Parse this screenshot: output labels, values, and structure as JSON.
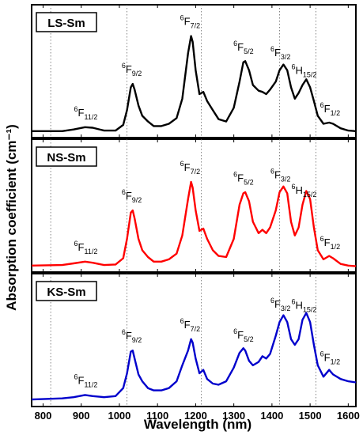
{
  "chart_data": {
    "type": "line",
    "ylabel": "Absorption coefficient (cm⁻¹)",
    "xlabel": "Wavelength (nm)",
    "xlim": [
      770,
      1620
    ],
    "x_ticks": [
      800,
      900,
      1000,
      1100,
      1200,
      1300,
      1400,
      1500,
      1600
    ],
    "x_grid_lines": [
      820,
      1020,
      1215,
      1420,
      1515
    ],
    "y_axis_ticks_shown": false,
    "panels": [
      {
        "label": "LS-Sm",
        "color": "#000000",
        "points": [
          [
            770,
            0.015
          ],
          [
            850,
            0.015
          ],
          [
            880,
            0.03
          ],
          [
            910,
            0.05
          ],
          [
            930,
            0.045
          ],
          [
            960,
            0.02
          ],
          [
            990,
            0.02
          ],
          [
            1010,
            0.07
          ],
          [
            1020,
            0.2
          ],
          [
            1030,
            0.4
          ],
          [
            1035,
            0.43
          ],
          [
            1040,
            0.38
          ],
          [
            1050,
            0.24
          ],
          [
            1060,
            0.15
          ],
          [
            1075,
            0.1
          ],
          [
            1090,
            0.06
          ],
          [
            1110,
            0.06
          ],
          [
            1130,
            0.08
          ],
          [
            1150,
            0.13
          ],
          [
            1165,
            0.3
          ],
          [
            1180,
            0.7
          ],
          [
            1188,
            0.85
          ],
          [
            1192,
            0.8
          ],
          [
            1200,
            0.55
          ],
          [
            1210,
            0.34
          ],
          [
            1220,
            0.36
          ],
          [
            1230,
            0.28
          ],
          [
            1245,
            0.2
          ],
          [
            1260,
            0.12
          ],
          [
            1280,
            0.1
          ],
          [
            1300,
            0.22
          ],
          [
            1315,
            0.45
          ],
          [
            1325,
            0.62
          ],
          [
            1330,
            0.63
          ],
          [
            1340,
            0.55
          ],
          [
            1350,
            0.42
          ],
          [
            1365,
            0.37
          ],
          [
            1375,
            0.36
          ],
          [
            1385,
            0.34
          ],
          [
            1395,
            0.38
          ],
          [
            1410,
            0.45
          ],
          [
            1420,
            0.55
          ],
          [
            1430,
            0.6
          ],
          [
            1440,
            0.55
          ],
          [
            1450,
            0.4
          ],
          [
            1460,
            0.3
          ],
          [
            1470,
            0.35
          ],
          [
            1480,
            0.42
          ],
          [
            1490,
            0.47
          ],
          [
            1500,
            0.4
          ],
          [
            1510,
            0.28
          ],
          [
            1520,
            0.15
          ],
          [
            1535,
            0.08
          ],
          [
            1550,
            0.09
          ],
          [
            1560,
            0.08
          ],
          [
            1580,
            0.04
          ],
          [
            1600,
            0.02
          ],
          [
            1620,
            0.015
          ]
        ],
        "annotations": [
          {
            "base": "6",
            "main": "F",
            "sub": "11/2",
            "x": 910
          },
          {
            "base": "6",
            "main": "F",
            "sub": "9/2",
            "x": 1035
          },
          {
            "base": "6",
            "main": "F",
            "sub": "7/2",
            "x": 1188
          },
          {
            "base": "6",
            "main": "F",
            "sub": "5/2",
            "x": 1328
          },
          {
            "base": "6",
            "main": "F",
            "sub": "3/2",
            "x": 1425
          },
          {
            "base": "6",
            "main": "H",
            "sub": "15/2",
            "x": 1480
          },
          {
            "base": "6",
            "main": "F",
            "sub": "1/2",
            "x": 1555
          }
        ]
      },
      {
        "label": "NS-Sm",
        "color": "#ff0000",
        "points": [
          [
            770,
            0.015
          ],
          [
            850,
            0.02
          ],
          [
            880,
            0.035
          ],
          [
            910,
            0.05
          ],
          [
            930,
            0.04
          ],
          [
            960,
            0.02
          ],
          [
            990,
            0.025
          ],
          [
            1010,
            0.08
          ],
          [
            1020,
            0.25
          ],
          [
            1030,
            0.48
          ],
          [
            1035,
            0.5
          ],
          [
            1040,
            0.43
          ],
          [
            1050,
            0.25
          ],
          [
            1060,
            0.15
          ],
          [
            1075,
            0.09
          ],
          [
            1090,
            0.05
          ],
          [
            1110,
            0.05
          ],
          [
            1130,
            0.07
          ],
          [
            1150,
            0.12
          ],
          [
            1165,
            0.28
          ],
          [
            1180,
            0.6
          ],
          [
            1188,
            0.75
          ],
          [
            1192,
            0.7
          ],
          [
            1200,
            0.5
          ],
          [
            1210,
            0.32
          ],
          [
            1220,
            0.34
          ],
          [
            1230,
            0.25
          ],
          [
            1245,
            0.15
          ],
          [
            1260,
            0.1
          ],
          [
            1280,
            0.09
          ],
          [
            1300,
            0.25
          ],
          [
            1315,
            0.55
          ],
          [
            1325,
            0.65
          ],
          [
            1330,
            0.66
          ],
          [
            1340,
            0.58
          ],
          [
            1350,
            0.4
          ],
          [
            1365,
            0.3
          ],
          [
            1375,
            0.33
          ],
          [
            1385,
            0.3
          ],
          [
            1395,
            0.35
          ],
          [
            1410,
            0.5
          ],
          [
            1420,
            0.66
          ],
          [
            1430,
            0.71
          ],
          [
            1440,
            0.65
          ],
          [
            1450,
            0.4
          ],
          [
            1460,
            0.28
          ],
          [
            1470,
            0.35
          ],
          [
            1480,
            0.55
          ],
          [
            1490,
            0.67
          ],
          [
            1500,
            0.6
          ],
          [
            1510,
            0.35
          ],
          [
            1520,
            0.15
          ],
          [
            1535,
            0.07
          ],
          [
            1550,
            0.1
          ],
          [
            1560,
            0.08
          ],
          [
            1580,
            0.03
          ],
          [
            1600,
            0.015
          ],
          [
            1620,
            0.01
          ]
        ],
        "annotations": [
          {
            "base": "6",
            "main": "F",
            "sub": "11/2",
            "x": 910
          },
          {
            "base": "6",
            "main": "F",
            "sub": "9/2",
            "x": 1035
          },
          {
            "base": "6",
            "main": "F",
            "sub": "7/2",
            "x": 1188
          },
          {
            "base": "6",
            "main": "F",
            "sub": "5/2",
            "x": 1328
          },
          {
            "base": "6",
            "main": "F",
            "sub": "3/2",
            "x": 1425
          },
          {
            "base": "6",
            "main": "H",
            "sub": "15/2",
            "x": 1480
          },
          {
            "base": "6",
            "main": "F",
            "sub": "1/2",
            "x": 1555
          }
        ]
      },
      {
        "label": "KS-Sm",
        "color": "#0000cc",
        "points": [
          [
            770,
            0.02
          ],
          [
            850,
            0.03
          ],
          [
            880,
            0.04
          ],
          [
            910,
            0.06
          ],
          [
            930,
            0.05
          ],
          [
            960,
            0.04
          ],
          [
            990,
            0.05
          ],
          [
            1010,
            0.12
          ],
          [
            1020,
            0.25
          ],
          [
            1030,
            0.44
          ],
          [
            1035,
            0.45
          ],
          [
            1040,
            0.38
          ],
          [
            1050,
            0.24
          ],
          [
            1060,
            0.18
          ],
          [
            1075,
            0.12
          ],
          [
            1090,
            0.1
          ],
          [
            1110,
            0.1
          ],
          [
            1130,
            0.12
          ],
          [
            1150,
            0.18
          ],
          [
            1165,
            0.32
          ],
          [
            1180,
            0.45
          ],
          [
            1188,
            0.55
          ],
          [
            1192,
            0.52
          ],
          [
            1200,
            0.38
          ],
          [
            1210,
            0.25
          ],
          [
            1220,
            0.28
          ],
          [
            1230,
            0.2
          ],
          [
            1245,
            0.16
          ],
          [
            1260,
            0.15
          ],
          [
            1280,
            0.18
          ],
          [
            1300,
            0.3
          ],
          [
            1315,
            0.43
          ],
          [
            1325,
            0.47
          ],
          [
            1330,
            0.45
          ],
          [
            1340,
            0.36
          ],
          [
            1350,
            0.32
          ],
          [
            1365,
            0.35
          ],
          [
            1375,
            0.4
          ],
          [
            1385,
            0.38
          ],
          [
            1395,
            0.42
          ],
          [
            1410,
            0.58
          ],
          [
            1420,
            0.7
          ],
          [
            1430,
            0.76
          ],
          [
            1440,
            0.7
          ],
          [
            1450,
            0.55
          ],
          [
            1460,
            0.5
          ],
          [
            1470,
            0.55
          ],
          [
            1480,
            0.72
          ],
          [
            1490,
            0.78
          ],
          [
            1500,
            0.7
          ],
          [
            1510,
            0.5
          ],
          [
            1520,
            0.32
          ],
          [
            1535,
            0.22
          ],
          [
            1550,
            0.28
          ],
          [
            1560,
            0.24
          ],
          [
            1580,
            0.2
          ],
          [
            1600,
            0.18
          ],
          [
            1620,
            0.17
          ]
        ],
        "annotations": [
          {
            "base": "6",
            "main": "F",
            "sub": "11/2",
            "x": 910
          },
          {
            "base": "6",
            "main": "F",
            "sub": "9/2",
            "x": 1035
          },
          {
            "base": "6",
            "main": "F",
            "sub": "7/2",
            "x": 1188
          },
          {
            "base": "6",
            "main": "F",
            "sub": "5/2",
            "x": 1328
          },
          {
            "base": "6",
            "main": "F",
            "sub": "3/2",
            "x": 1425
          },
          {
            "base": "6",
            "main": "H",
            "sub": "15/2",
            "x": 1480
          },
          {
            "base": "6",
            "main": "F",
            "sub": "1/2",
            "x": 1555
          }
        ]
      }
    ]
  }
}
